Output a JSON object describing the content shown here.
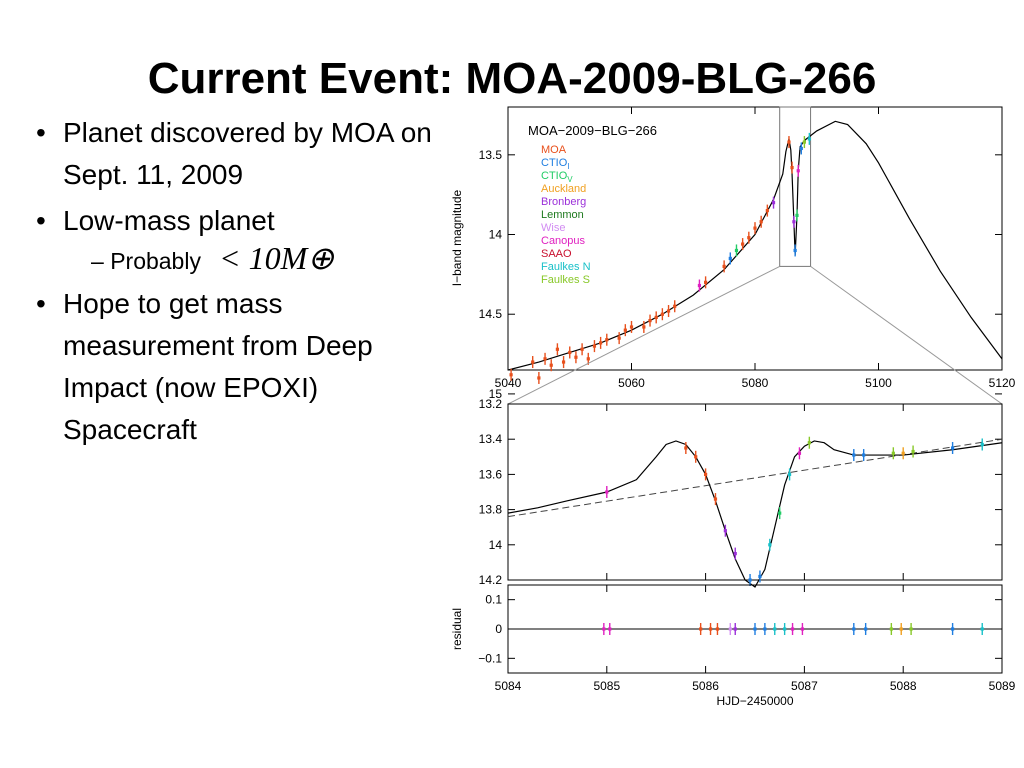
{
  "slide": {
    "title": "Current Event: MOA-2009-BLG-266",
    "bullets": [
      {
        "text": "Planet discovered by MOA on Sept. 11, 2009"
      },
      {
        "text": "Low-mass planet",
        "sub": [
          {
            "text": "Probably",
            "math": "< 10M⊕"
          }
        ]
      },
      {
        "text": "Hope to get mass measurement from Deep Impact (now EPOXI) Spacecraft"
      }
    ]
  },
  "chart_data": [
    {
      "type": "line",
      "title": "MOA−2009−BLG−266",
      "xlabel": "",
      "ylabel": "I−band magnitude",
      "xlim": [
        5040,
        5120
      ],
      "ylim": [
        14.85,
        13.2
      ],
      "y_inverted": true,
      "xticks": [
        5040,
        5060,
        5080,
        5100,
        5120
      ],
      "yticks": [
        13.5,
        14,
        14.5,
        15
      ],
      "legend": {
        "placement": "top-left",
        "entries": [
          {
            "name": "MOA",
            "color": "#e8501c"
          },
          {
            "name": "CTIO",
            "sub": "I",
            "color": "#1f7ee0"
          },
          {
            "name": "CTIO",
            "sub": "V",
            "color": "#22cc66"
          },
          {
            "name": "Auckland",
            "color": "#f0a020"
          },
          {
            "name": "Bronberg",
            "color": "#9b30d9"
          },
          {
            "name": "Lemmon",
            "color": "#1f7a1f"
          },
          {
            "name": "Wise",
            "color": "#d28cf2"
          },
          {
            "name": "Canopus",
            "color": "#e020c0"
          },
          {
            "name": "SAAO",
            "color": "#c8102e"
          },
          {
            "name": "Faulkes N",
            "color": "#19c0c8"
          },
          {
            "name": "Faulkes S",
            "color": "#88c828"
          }
        ]
      },
      "model_curve": {
        "x": [
          5040,
          5045,
          5050,
          5055,
          5060,
          5065,
          5070,
          5075,
          5080,
          5083,
          5084.5,
          5085,
          5085.5,
          5085.8,
          5086,
          5086.3,
          5086.5,
          5086.8,
          5087,
          5087.3,
          5088,
          5090,
          5093,
          5095,
          5098,
          5100,
          5105,
          5110,
          5115,
          5120
        ],
        "y": [
          14.85,
          14.8,
          14.74,
          14.68,
          14.6,
          14.5,
          14.38,
          14.22,
          14.0,
          13.78,
          13.62,
          13.48,
          13.4,
          13.47,
          13.62,
          13.92,
          14.13,
          13.88,
          13.6,
          13.45,
          13.41,
          13.35,
          13.29,
          13.31,
          13.43,
          13.55,
          13.9,
          14.23,
          14.52,
          14.78
        ]
      },
      "zoom_box": {
        "x": [
          5084,
          5089
        ],
        "y": [
          13.2,
          14.2
        ]
      },
      "data_points": [
        {
          "series": "MOA",
          "x": 5040.5,
          "y": 14.88
        },
        {
          "series": "MOA",
          "x": 5044,
          "y": 14.8
        },
        {
          "series": "MOA",
          "x": 5045,
          "y": 14.9
        },
        {
          "series": "MOA",
          "x": 5046,
          "y": 14.78
        },
        {
          "series": "MOA",
          "x": 5047,
          "y": 14.82
        },
        {
          "series": "MOA",
          "x": 5048,
          "y": 14.72
        },
        {
          "series": "MOA",
          "x": 5049,
          "y": 14.8
        },
        {
          "series": "MOA",
          "x": 5050,
          "y": 14.74
        },
        {
          "series": "MOA",
          "x": 5051,
          "y": 14.77
        },
        {
          "series": "MOA",
          "x": 5052,
          "y": 14.72
        },
        {
          "series": "MOA",
          "x": 5053,
          "y": 14.78
        },
        {
          "series": "MOA",
          "x": 5054,
          "y": 14.7
        },
        {
          "series": "MOA",
          "x": 5055,
          "y": 14.68
        },
        {
          "series": "MOA",
          "x": 5056,
          "y": 14.66
        },
        {
          "series": "MOA",
          "x": 5058,
          "y": 14.65
        },
        {
          "series": "MOA",
          "x": 5059,
          "y": 14.6
        },
        {
          "series": "MOA",
          "x": 5060,
          "y": 14.58
        },
        {
          "series": "MOA",
          "x": 5062,
          "y": 14.58
        },
        {
          "series": "MOA",
          "x": 5063,
          "y": 14.54
        },
        {
          "series": "MOA",
          "x": 5064,
          "y": 14.52
        },
        {
          "series": "MOA",
          "x": 5065,
          "y": 14.5
        },
        {
          "series": "MOA",
          "x": 5066,
          "y": 14.48
        },
        {
          "series": "MOA",
          "x": 5067,
          "y": 14.45
        },
        {
          "series": "Canopus",
          "x": 5071,
          "y": 14.32
        },
        {
          "series": "MOA",
          "x": 5072,
          "y": 14.3
        },
        {
          "series": "MOA",
          "x": 5075,
          "y": 14.2
        },
        {
          "series": "CTIO I",
          "x": 5076,
          "y": 14.15
        },
        {
          "series": "CTIO V",
          "x": 5077,
          "y": 14.1
        },
        {
          "series": "MOA",
          "x": 5078,
          "y": 14.06
        },
        {
          "series": "MOA",
          "x": 5079,
          "y": 14.02
        },
        {
          "series": "MOA",
          "x": 5080,
          "y": 13.96
        },
        {
          "series": "MOA",
          "x": 5081,
          "y": 13.92
        },
        {
          "series": "MOA",
          "x": 5082,
          "y": 13.85
        },
        {
          "series": "Bronberg",
          "x": 5083,
          "y": 13.8
        },
        {
          "series": "MOA",
          "x": 5085.5,
          "y": 13.42
        },
        {
          "series": "MOA",
          "x": 5086,
          "y": 13.58
        },
        {
          "series": "Bronberg",
          "x": 5086.3,
          "y": 13.92
        },
        {
          "series": "CTIO I",
          "x": 5086.5,
          "y": 14.1
        },
        {
          "series": "CTIO V",
          "x": 5086.8,
          "y": 13.88
        },
        {
          "series": "Canopus",
          "x": 5087,
          "y": 13.6
        },
        {
          "series": "CTIO I",
          "x": 5087.5,
          "y": 13.46
        },
        {
          "series": "Faulkes S",
          "x": 5088,
          "y": 13.42
        },
        {
          "series": "Faulkes N",
          "x": 5088.8,
          "y": 13.4
        }
      ]
    },
    {
      "type": "line",
      "title": "",
      "xlim": [
        5084,
        5089
      ],
      "ylim": [
        14.2,
        13.2
      ],
      "y_inverted": true,
      "yticks": [
        13.2,
        13.4,
        13.6,
        13.8,
        14,
        14.2
      ],
      "model_curve": {
        "x": [
          5084,
          5084.3,
          5084.6,
          5085,
          5085.3,
          5085.5,
          5085.6,
          5085.7,
          5085.8,
          5085.9,
          5086,
          5086.1,
          5086.2,
          5086.3,
          5086.4,
          5086.5,
          5086.6,
          5086.7,
          5086.8,
          5086.9,
          5087,
          5087.1,
          5087.2,
          5087.3,
          5087.5,
          5088,
          5088.5,
          5089
        ],
        "y": [
          13.82,
          13.79,
          13.75,
          13.7,
          13.63,
          13.5,
          13.43,
          13.41,
          13.43,
          13.5,
          13.6,
          13.75,
          13.92,
          14.08,
          14.2,
          14.24,
          14.14,
          13.9,
          13.66,
          13.5,
          13.44,
          13.41,
          13.42,
          13.46,
          13.49,
          13.49,
          13.46,
          13.42
        ]
      },
      "baseline": {
        "x": [
          5084,
          5089
        ],
        "y": [
          13.84,
          13.4
        ]
      },
      "data_points": [
        {
          "series": "Canopus",
          "x": 5085,
          "y": 13.7
        },
        {
          "series": "MOA",
          "x": 5085.8,
          "y": 13.45
        },
        {
          "series": "MOA",
          "x": 5085.9,
          "y": 13.5
        },
        {
          "series": "MOA",
          "x": 5086,
          "y": 13.6
        },
        {
          "series": "MOA",
          "x": 5086.1,
          "y": 13.74
        },
        {
          "series": "Bronberg",
          "x": 5086.2,
          "y": 13.92
        },
        {
          "series": "Bronberg",
          "x": 5086.3,
          "y": 14.05
        },
        {
          "series": "CTIO I",
          "x": 5086.45,
          "y": 14.2
        },
        {
          "series": "CTIO I",
          "x": 5086.55,
          "y": 14.18
        },
        {
          "series": "Faulkes N",
          "x": 5086.65,
          "y": 14.0
        },
        {
          "series": "CTIO V",
          "x": 5086.75,
          "y": 13.82
        },
        {
          "series": "Faulkes N",
          "x": 5086.85,
          "y": 13.6
        },
        {
          "series": "Canopus",
          "x": 5086.95,
          "y": 13.48
        },
        {
          "series": "Faulkes S",
          "x": 5087.05,
          "y": 13.42
        },
        {
          "series": "CTIO I",
          "x": 5087.5,
          "y": 13.49
        },
        {
          "series": "CTIO I",
          "x": 5087.6,
          "y": 13.49
        },
        {
          "series": "Faulkes S",
          "x": 5087.9,
          "y": 13.48
        },
        {
          "series": "Auckland",
          "x": 5088,
          "y": 13.48
        },
        {
          "series": "Faulkes S",
          "x": 5088.1,
          "y": 13.47
        },
        {
          "series": "CTIO I",
          "x": 5088.5,
          "y": 13.45
        },
        {
          "series": "Faulkes N",
          "x": 5088.8,
          "y": 13.43
        }
      ]
    },
    {
      "type": "scatter",
      "title": "",
      "xlabel": "HJD−2450000",
      "ylabel": "residual",
      "xlim": [
        5084,
        5089
      ],
      "ylim": [
        -0.15,
        0.15
      ],
      "xticks": [
        5084,
        5085,
        5086,
        5087,
        5088,
        5089
      ],
      "yticks": [
        0.1,
        0,
        -0.1
      ],
      "ytick_labels": [
        "0.1",
        "0",
        "−0.1"
      ],
      "zero_line": true,
      "data_points": [
        {
          "series": "Canopus",
          "x": 5084.97,
          "y": 0.0
        },
        {
          "series": "Canopus",
          "x": 5085.03,
          "y": 0.0
        },
        {
          "series": "MOA",
          "x": 5085.95,
          "y": 0.0
        },
        {
          "series": "MOA",
          "x": 5086.05,
          "y": 0.0
        },
        {
          "series": "MOA",
          "x": 5086.12,
          "y": 0.0
        },
        {
          "series": "Wise",
          "x": 5086.25,
          "y": 0.0
        },
        {
          "series": "Bronberg",
          "x": 5086.3,
          "y": 0.0
        },
        {
          "series": "CTIO I",
          "x": 5086.5,
          "y": 0.0
        },
        {
          "series": "CTIO I",
          "x": 5086.6,
          "y": 0.0
        },
        {
          "series": "Faulkes N",
          "x": 5086.7,
          "y": 0.0
        },
        {
          "series": "Faulkes N",
          "x": 5086.8,
          "y": 0.0
        },
        {
          "series": "Canopus",
          "x": 5086.88,
          "y": 0.0
        },
        {
          "series": "Canopus",
          "x": 5086.98,
          "y": 0.0
        },
        {
          "series": "CTIO I",
          "x": 5087.5,
          "y": 0.0
        },
        {
          "series": "CTIO I",
          "x": 5087.62,
          "y": 0.0
        },
        {
          "series": "Faulkes S",
          "x": 5087.88,
          "y": 0.0
        },
        {
          "series": "Auckland",
          "x": 5087.98,
          "y": 0.0
        },
        {
          "series": "Faulkes S",
          "x": 5088.08,
          "y": 0.0
        },
        {
          "series": "CTIO I",
          "x": 5088.5,
          "y": 0.0
        },
        {
          "series": "Faulkes N",
          "x": 5088.8,
          "y": 0.0
        }
      ]
    }
  ]
}
